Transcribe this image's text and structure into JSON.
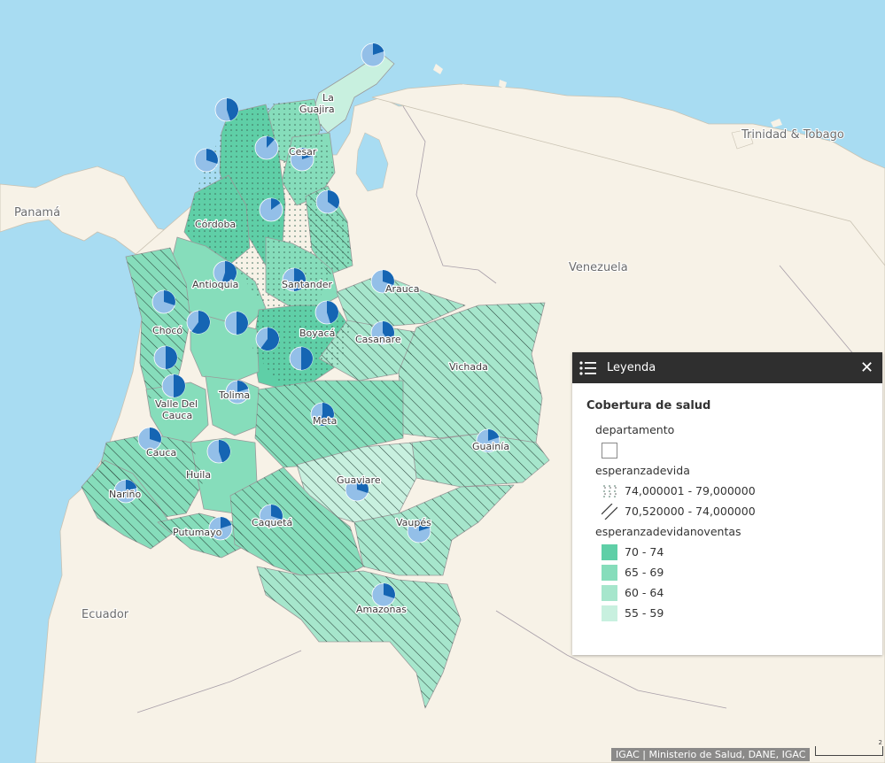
{
  "map": {
    "colors": {
      "ocean": "#a8dcf2",
      "land": "#f7f2e7",
      "class_70_74": "#5fcfa7",
      "class_65_69": "#86ddbb",
      "class_60_64": "#a6e6cc",
      "class_55_59": "#c8f0df",
      "pie_dark": "#1565b3",
      "pie_light": "#93bfe8"
    },
    "country_labels": {
      "panama": "Panamá",
      "venezuela": "Venezuela",
      "ecuador": "Ecuador",
      "trinidad": "Trinidad & Tobago"
    },
    "departments": [
      {
        "id": "la-guajira-1",
        "label": "La"
      },
      {
        "id": "la-guajira-2",
        "label": "Guajira"
      },
      {
        "id": "cesar",
        "label": "Cesar"
      },
      {
        "id": "cordoba",
        "label": "Córdoba"
      },
      {
        "id": "antioquia",
        "label": "Antioquia"
      },
      {
        "id": "santander",
        "label": "Santander"
      },
      {
        "id": "arauca",
        "label": "Arauca"
      },
      {
        "id": "boyaca",
        "label": "Boyacá"
      },
      {
        "id": "casanare",
        "label": "Casanare"
      },
      {
        "id": "choco",
        "label": "Chocó"
      },
      {
        "id": "vichada",
        "label": "Vichada"
      },
      {
        "id": "tolima",
        "label": "Tolima"
      },
      {
        "id": "valle-1",
        "label": "Valle Del"
      },
      {
        "id": "valle-2",
        "label": "Cauca"
      },
      {
        "id": "meta",
        "label": "Meta"
      },
      {
        "id": "cauca",
        "label": "Cauca"
      },
      {
        "id": "guainia",
        "label": "Guainía"
      },
      {
        "id": "huila",
        "label": "Huila"
      },
      {
        "id": "guaviare",
        "label": "Guaviare"
      },
      {
        "id": "narino",
        "label": "Nariño"
      },
      {
        "id": "vaupes",
        "label": "Vaupés"
      },
      {
        "id": "caqueta",
        "label": "Caquetá"
      },
      {
        "id": "putumayo",
        "label": "Putumayo"
      },
      {
        "id": "amazonas",
        "label": "Amazonas"
      }
    ],
    "pies": [
      {
        "id": "guajira",
        "dark_fraction": 0.2
      },
      {
        "id": "atlantico",
        "dark_fraction": 0.45
      },
      {
        "id": "cesar",
        "dark_fraction": 0.2
      },
      {
        "id": "magdalena",
        "dark_fraction": 0.12
      },
      {
        "id": "bolivar",
        "dark_fraction": 0.3
      },
      {
        "id": "norte-santander",
        "dark_fraction": 0.35
      },
      {
        "id": "cordoba",
        "dark_fraction": 0.15
      },
      {
        "id": "antioquia",
        "dark_fraction": 0.55
      },
      {
        "id": "santander",
        "dark_fraction": 0.5
      },
      {
        "id": "arauca",
        "dark_fraction": 0.3
      },
      {
        "id": "choco-n",
        "dark_fraction": 0.3
      },
      {
        "id": "risaralda",
        "dark_fraction": 0.6
      },
      {
        "id": "caldas",
        "dark_fraction": 0.5
      },
      {
        "id": "boyaca",
        "dark_fraction": 0.45
      },
      {
        "id": "cundinamarca",
        "dark_fraction": 0.6
      },
      {
        "id": "casanare",
        "dark_fraction": 0.4
      },
      {
        "id": "bogota",
        "dark_fraction": 0.5
      },
      {
        "id": "choco-s",
        "dark_fraction": 0.5
      },
      {
        "id": "valle",
        "dark_fraction": 0.5
      },
      {
        "id": "tolima",
        "dark_fraction": 0.2
      },
      {
        "id": "meta",
        "dark_fraction": 0.55
      },
      {
        "id": "cauca",
        "dark_fraction": 0.3
      },
      {
        "id": "huila",
        "dark_fraction": 0.45
      },
      {
        "id": "guainia",
        "dark_fraction": 0.2
      },
      {
        "id": "narino",
        "dark_fraction": 0.2
      },
      {
        "id": "guaviare",
        "dark_fraction": 0.3
      },
      {
        "id": "putumayo",
        "dark_fraction": 0.2
      },
      {
        "id": "caqueta",
        "dark_fraction": 0.3
      },
      {
        "id": "vaupes",
        "dark_fraction": 0.2
      },
      {
        "id": "amazonas",
        "dark_fraction": 0.3
      }
    ]
  },
  "legend": {
    "header_title": "Leyenda",
    "heading": "Cobertura de salud",
    "layer_departamento": "departamento",
    "layer_esperanzadevida": "esperanzadevida",
    "dots_label": "74,000001 - 79,000000",
    "hatch_label": "70,520000 - 74,000000",
    "layer_noventas": "esperanzadevidanoventas",
    "classes": [
      {
        "label": "70 - 74",
        "color": "#5fcfa7"
      },
      {
        "label": "65 - 69",
        "color": "#86ddbb"
      },
      {
        "label": "60 - 64",
        "color": "#a6e6cc"
      },
      {
        "label": "55 - 59",
        "color": "#c8f0df"
      }
    ]
  },
  "attribution": "IGAC | Ministerio de Salud, DANE, IGAC",
  "scalebar_label": "2"
}
